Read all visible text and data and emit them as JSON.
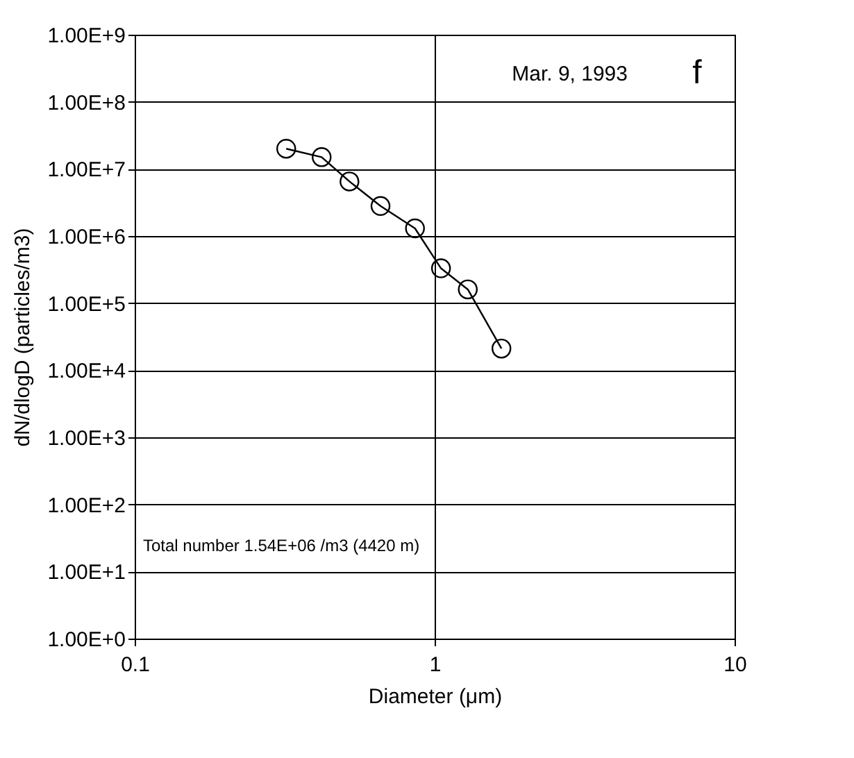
{
  "chart_data": {
    "type": "line",
    "xlabel": "Diameter (μm)",
    "ylabel": "dN/dlogD (particles/m3)",
    "annotations": [
      "Mar. 9, 1993",
      "f",
      "Total number 1.54E+06 /m3 (4420 m)"
    ],
    "x": [
      0.32,
      0.42,
      0.52,
      0.66,
      0.86,
      1.05,
      1.29,
      1.67
    ],
    "series": [
      {
        "color": "#000000",
        "values": [
          20000000.0,
          15000000.0,
          6500000.0,
          2800000.0,
          1300000.0,
          330000.0,
          160000.0,
          21000.0
        ]
      }
    ],
    "log": "xy",
    "xlim": [
      0.1,
      10
    ],
    "xticks": [
      0.1,
      1,
      10
    ],
    "ylim": [
      1,
      1000000000.0
    ],
    "yticks": [
      {
        "value": 1,
        "label": "1.00E+0"
      },
      {
        "value": 10,
        "label": "1.00E+1"
      },
      {
        "value": 100,
        "label": "1.00E+2"
      },
      {
        "value": 1000,
        "label": "1.00E+3"
      },
      {
        "value": 10000,
        "label": "1.00E+4"
      },
      {
        "value": 100000,
        "label": "1.00E+5"
      },
      {
        "value": 1000000,
        "label": "1.00E+6"
      },
      {
        "value": 10000000,
        "label": "1.00E+7"
      },
      {
        "value": 100000000,
        "label": "1.00E+8"
      },
      {
        "value": 1000000000,
        "label": "1.00E+9"
      }
    ],
    "grid": true,
    "marker": "circle",
    "line_style": "solid"
  }
}
